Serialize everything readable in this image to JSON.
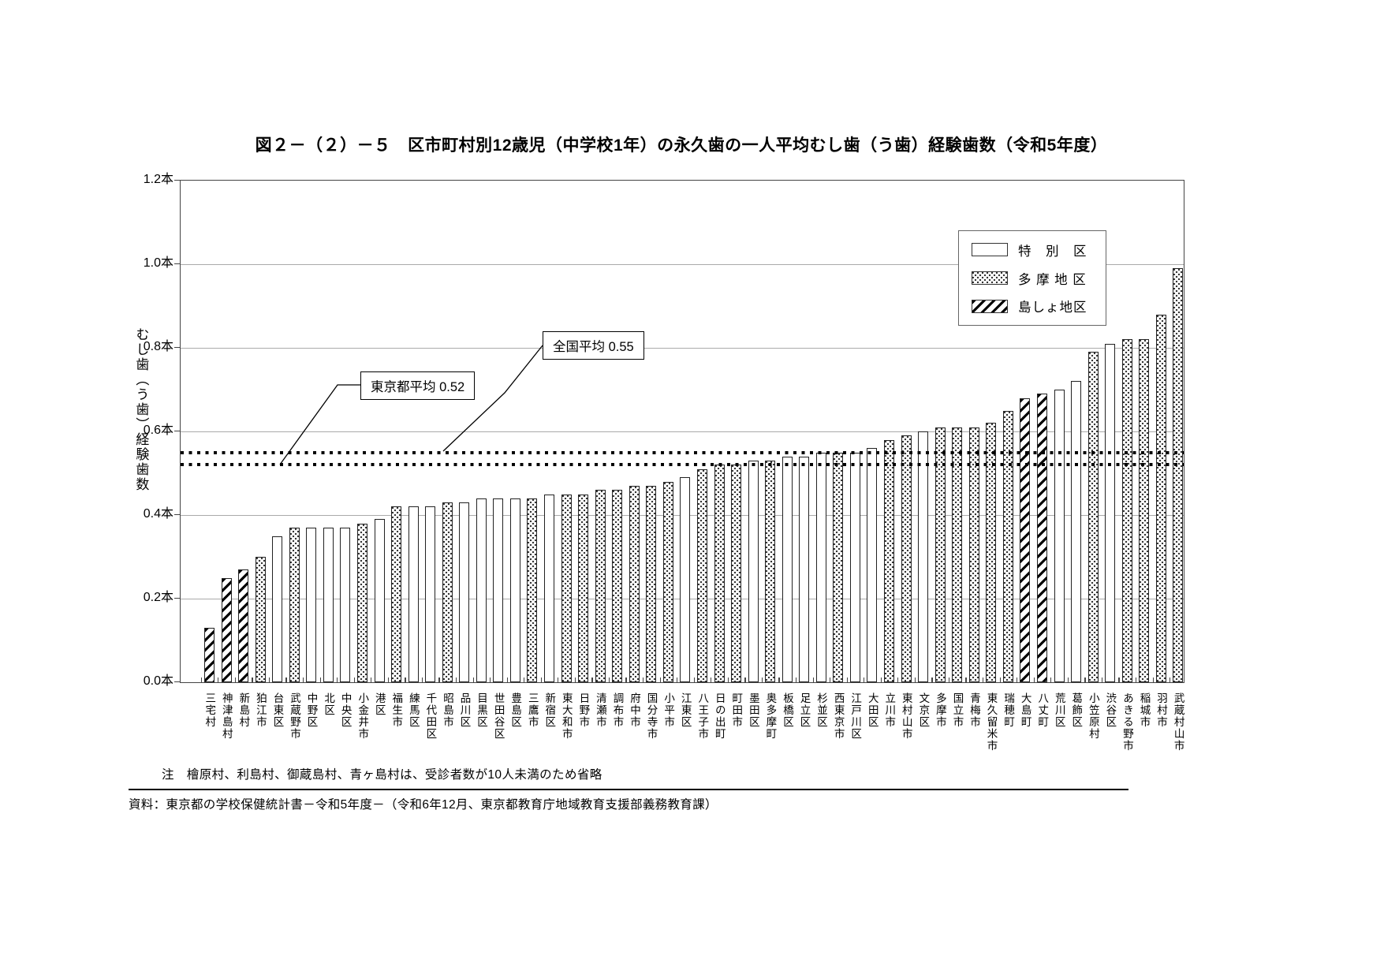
{
  "title": "図２－（２）－５　区市町村別12歳児（中学校1年）の永久歯の一人平均むし歯（う歯）経験歯数（令和5年度）",
  "note": "注　檜原村、利島村、御蔵島村、青ヶ島村は、受診者数が10人未満のため省略",
  "source": "資料：東京都の学校保健統計書－令和5年度－（令和6年12月、東京都教育庁地域教育支援部義務教育課）",
  "legend": {
    "items": [
      {
        "label": "特　別　区",
        "pattern": "ward"
      },
      {
        "label": "多 摩 地 区",
        "pattern": "tama"
      },
      {
        "label": "島しょ地区",
        "pattern": "island"
      }
    ]
  },
  "annotations": {
    "tokyo_avg_label": "東京都平均 0.52",
    "national_avg_label": "全国平均 0.55"
  },
  "chart_data": {
    "type": "bar",
    "title": "図２－（２）－５　区市町村別12歳児（中学校1年）の永久歯の一人平均むし歯（う歯）経験歯数（令和5年度）",
    "ylabel": "むし歯（う歯）経験歯数",
    "xlabel": "",
    "unit": "本",
    "ylim": [
      0,
      1.2
    ],
    "grid": true,
    "legend_position": "top-right",
    "yticks": [
      {
        "label": "1.2本",
        "v": 1.2
      },
      {
        "label": "1.0本",
        "v": 1.0
      },
      {
        "label": "0.8本",
        "v": 0.8
      },
      {
        "label": "0.6本",
        "v": 0.6
      },
      {
        "label": "0.4本",
        "v": 0.4
      },
      {
        "label": "0.2本",
        "v": 0.2
      },
      {
        "label": "0.0本",
        "v": 0.0
      }
    ],
    "reference_lines": [
      {
        "name": "東京都平均",
        "value": 0.52
      },
      {
        "name": "全国平均",
        "value": 0.55
      }
    ],
    "categories": [
      "三宅村",
      "神津島村",
      "新島村",
      "狛江市",
      "台東区",
      "武蔵野市",
      "中野区",
      "北区",
      "中央区",
      "小金井市",
      "港区",
      "福生市",
      "練馬区",
      "千代田区",
      "昭島市",
      "品川区",
      "目黒区",
      "世田谷区",
      "豊島区",
      "三鷹市",
      "新宿区",
      "東大和市",
      "日野市",
      "清瀬市",
      "調布市",
      "府中市",
      "国分寺市",
      "小平市",
      "江東区",
      "八王子市",
      "日の出町",
      "町田市",
      "墨田区",
      "奥多摩町",
      "板橋区",
      "足立区",
      "杉並区",
      "西東京市",
      "江戸川区",
      "大田区",
      "立川市",
      "東村山市",
      "文京区",
      "多摩市",
      "国立市",
      "青梅市",
      "東久留米市",
      "瑞穂町",
      "大島町",
      "八丈町",
      "荒川区",
      "葛飾区",
      "小笠原村",
      "渋谷区",
      "あきる野市",
      "稲城市",
      "羽村市",
      "武蔵村山市"
    ],
    "values": [
      0.13,
      0.25,
      0.27,
      0.3,
      0.35,
      0.37,
      0.37,
      0.37,
      0.37,
      0.38,
      0.39,
      0.42,
      0.42,
      0.42,
      0.43,
      0.43,
      0.44,
      0.44,
      0.44,
      0.44,
      0.45,
      0.45,
      0.45,
      0.46,
      0.46,
      0.47,
      0.47,
      0.48,
      0.49,
      0.51,
      0.52,
      0.52,
      0.53,
      0.53,
      0.54,
      0.54,
      0.55,
      0.55,
      0.55,
      0.56,
      0.58,
      0.59,
      0.6,
      0.61,
      0.61,
      0.61,
      0.62,
      0.65,
      0.68,
      0.69,
      0.7,
      0.72,
      0.79,
      0.81,
      0.82,
      0.82,
      0.88,
      0.99
    ],
    "groups": [
      "island",
      "island",
      "island",
      "tama",
      "ward",
      "tama",
      "ward",
      "ward",
      "ward",
      "tama",
      "ward",
      "tama",
      "ward",
      "ward",
      "tama",
      "ward",
      "ward",
      "ward",
      "ward",
      "tama",
      "ward",
      "tama",
      "tama",
      "tama",
      "tama",
      "tama",
      "tama",
      "tama",
      "ward",
      "tama",
      "tama",
      "tama",
      "ward",
      "tama",
      "ward",
      "ward",
      "ward",
      "tama",
      "ward",
      "ward",
      "tama",
      "tama",
      "ward",
      "tama",
      "tama",
      "tama",
      "tama",
      "tama",
      "island",
      "island",
      "ward",
      "ward",
      "tama",
      "ward",
      "tama",
      "tama",
      "tama",
      "tama"
    ]
  }
}
